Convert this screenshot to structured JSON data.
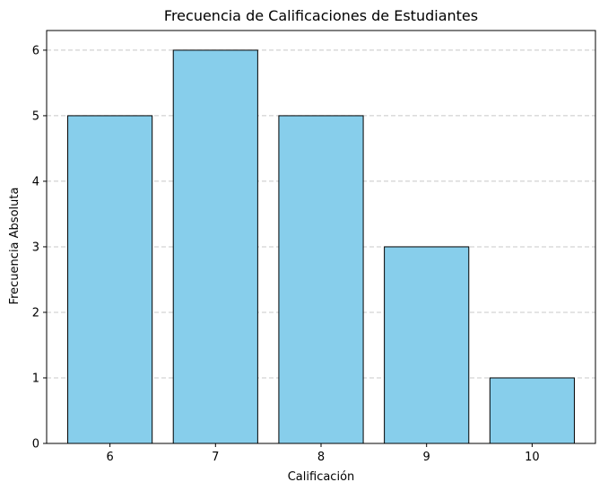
{
  "chart_data": {
    "type": "bar",
    "title": "Frecuencia de Calificaciones de Estudiantes",
    "xlabel": "Calificación",
    "ylabel": "Frecuencia Absoluta",
    "categories": [
      "6",
      "7",
      "8",
      "9",
      "10"
    ],
    "values": [
      5,
      6,
      5,
      3,
      1
    ],
    "ylim": [
      0,
      6.3
    ],
    "yticks": [
      "0",
      "1",
      "2",
      "3",
      "4",
      "5",
      "6"
    ],
    "grid": "y-dashed",
    "colors": {
      "bar_fill": "#87ceeb",
      "bar_edge": "#000000",
      "grid": "#c8c8c8"
    }
  }
}
